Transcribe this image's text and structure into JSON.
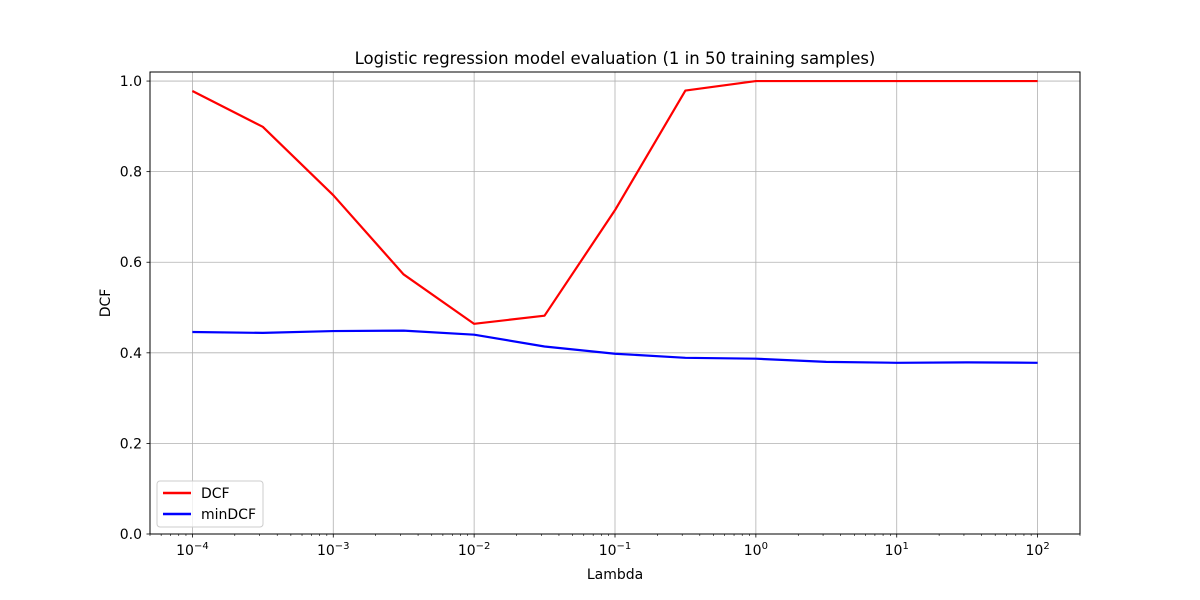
{
  "chart_data": {
    "type": "line",
    "title": "Logistic regression model evaluation (1 in 50 training samples)",
    "xlabel": "Lambda",
    "ylabel": "DCF",
    "xscale": "log",
    "xlim": [
      5e-05,
      200
    ],
    "ylim": [
      0,
      1.02
    ],
    "x": [
      0.0001,
      0.000316,
      0.001,
      0.00316,
      0.01,
      0.0316,
      0.1,
      0.316,
      1,
      3.16,
      10,
      31.6,
      100
    ],
    "xticks": [
      {
        "base": "10",
        "exp": "−4"
      },
      {
        "base": "10",
        "exp": "−3"
      },
      {
        "base": "10",
        "exp": "−2"
      },
      {
        "base": "10",
        "exp": "−1"
      },
      {
        "base": "10",
        "exp": "0"
      },
      {
        "base": "10",
        "exp": "1"
      },
      {
        "base": "10",
        "exp": "2"
      }
    ],
    "yticks": [
      "0.0",
      "0.2",
      "0.4",
      "0.6",
      "0.8",
      "1.0"
    ],
    "grid": true,
    "legend_position": "lower-left",
    "series": [
      {
        "name": "DCF",
        "color": "#ff0000",
        "values": [
          0.978,
          0.899,
          0.748,
          0.573,
          0.464,
          0.482,
          0.715,
          0.979,
          1.0,
          1.0,
          1.0,
          1.0,
          1.0
        ]
      },
      {
        "name": "minDCF",
        "color": "#0000ff",
        "values": [
          0.446,
          0.444,
          0.448,
          0.449,
          0.44,
          0.414,
          0.398,
          0.389,
          0.387,
          0.38,
          0.378,
          0.379,
          0.378
        ]
      }
    ]
  }
}
